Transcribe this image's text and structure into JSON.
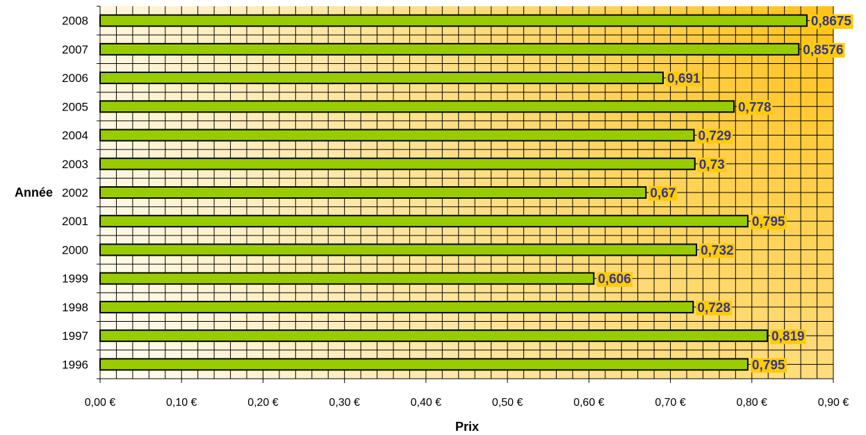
{
  "chart_data": {
    "type": "bar",
    "orientation": "horizontal",
    "title": "",
    "xlabel": "Prix",
    "ylabel": "Année",
    "categories": [
      "2008",
      "2007",
      "2006",
      "2005",
      "2004",
      "2003",
      "2002",
      "2001",
      "2000",
      "1999",
      "1998",
      "1997",
      "1996"
    ],
    "values": [
      0.8675,
      0.8576,
      0.691,
      0.778,
      0.729,
      0.73,
      0.67,
      0.795,
      0.732,
      0.606,
      0.728,
      0.819,
      0.795
    ],
    "value_labels": [
      "0,8675",
      "0,8576",
      "0,691",
      "0,778",
      "0,729",
      "0,73",
      "0,67",
      "0,795",
      "0,732",
      "0,606",
      "0,728",
      "0,819",
      "0,795"
    ],
    "xlim": [
      0,
      0.9
    ],
    "x_major_step": 0.1,
    "x_minor_step": 0.02,
    "x_tick_labels": [
      "0,00 €",
      "0,10 €",
      "0,20 €",
      "0,30 €",
      "0,40 €",
      "0,50 €",
      "0,60 €",
      "0,70 €",
      "0,80 €",
      "0,90 €"
    ],
    "grid": true,
    "legend": "none",
    "colors": {
      "bar_fill": "#99cc00",
      "bar_stroke": "#000000",
      "label_bg": "#ffcc00",
      "label_text": "#333399",
      "plot_bg_light": "#fffbf0",
      "plot_bg_dark": "#ffc21a",
      "gridline": "#000000"
    }
  }
}
